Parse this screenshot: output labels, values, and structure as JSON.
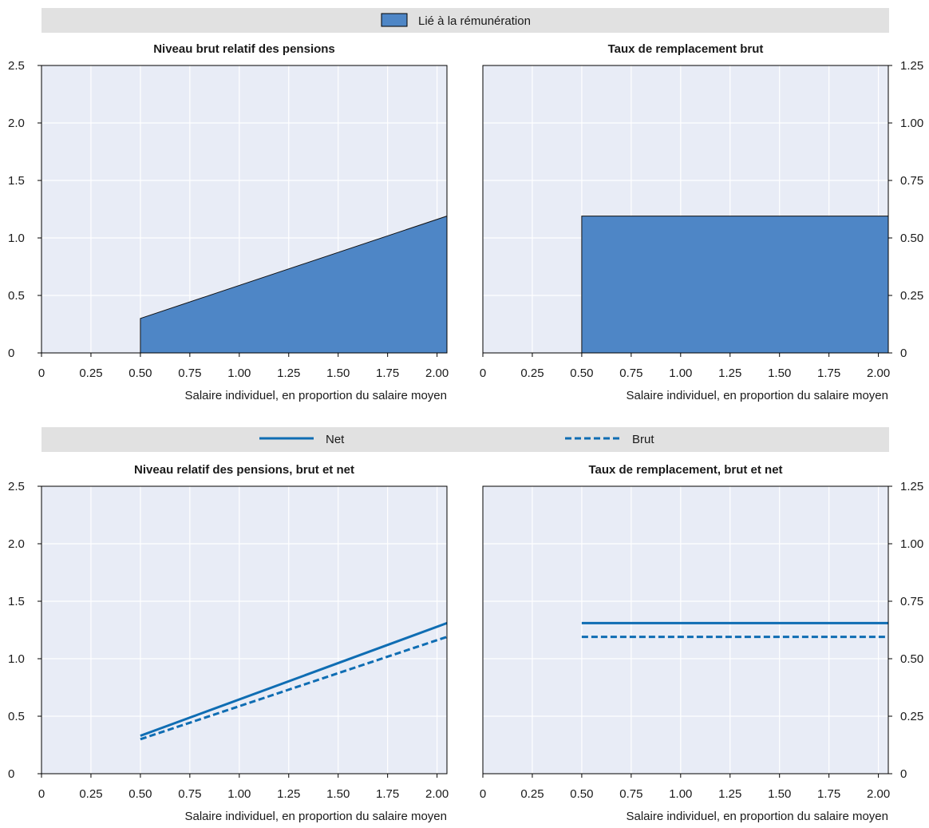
{
  "colors": {
    "area_fill": "#4e86c6",
    "line": "#0f6db3",
    "plot_bg": "#e8ecf6",
    "legend_bg": "#e1e1e1"
  },
  "legend_top": {
    "label": "Lié à la rémunération"
  },
  "legend_bottom": {
    "net_label": "Net",
    "brut_label": "Brut"
  },
  "chart_data": [
    {
      "type": "area",
      "title": "Niveau brut relatif des pensions",
      "xlabel": "Salaire individuel, en proportion du salaire moyen",
      "ylabel": "",
      "xlim": [
        0,
        2.05
      ],
      "ylim": [
        0,
        2.5
      ],
      "x_ticks": [
        "0",
        "0.25",
        "0.50",
        "0.75",
        "1.00",
        "1.25",
        "1.50",
        "1.75",
        "2.00"
      ],
      "y_ticks": [
        "0",
        "0.5",
        "1.0",
        "1.5",
        "2.0",
        "2.5"
      ],
      "y_axis_side": "left",
      "series": [
        {
          "name": "Lié à la rémunération",
          "x": [
            0,
            0.5,
            0.5,
            2.05
          ],
          "y": [
            0,
            0,
            0.3,
            1.19
          ]
        }
      ]
    },
    {
      "type": "area",
      "title": "Taux de remplacement brut",
      "xlabel": "Salaire individuel, en proportion du salaire moyen",
      "ylabel": "",
      "xlim": [
        0,
        2.05
      ],
      "ylim": [
        0,
        1.25
      ],
      "x_ticks": [
        "0",
        "0.25",
        "0.50",
        "0.75",
        "1.00",
        "1.25",
        "1.50",
        "1.75",
        "2.00"
      ],
      "y_ticks": [
        "0",
        "0.25",
        "0.50",
        "0.75",
        "1.00",
        "1.25"
      ],
      "y_axis_side": "right",
      "series": [
        {
          "name": "Lié à la rémunération",
          "x": [
            0,
            0.5,
            0.5,
            2.05
          ],
          "y": [
            0,
            0,
            0.595,
            0.595
          ]
        }
      ]
    },
    {
      "type": "line",
      "title": "Niveau relatif des pensions, brut et net",
      "xlabel": "Salaire individuel, en proportion du salaire moyen",
      "ylabel": "",
      "xlim": [
        0,
        2.05
      ],
      "ylim": [
        0,
        2.5
      ],
      "x_ticks": [
        "0",
        "0.25",
        "0.50",
        "0.75",
        "1.00",
        "1.25",
        "1.50",
        "1.75",
        "2.00"
      ],
      "y_ticks": [
        "0",
        "0.5",
        "1.0",
        "1.5",
        "2.0",
        "2.5"
      ],
      "y_axis_side": "left",
      "series": [
        {
          "name": "Net",
          "x": [
            0.5,
            2.05
          ],
          "y": [
            0.33,
            1.31
          ]
        },
        {
          "name": "Brut",
          "x": [
            0.5,
            2.05
          ],
          "y": [
            0.3,
            1.19
          ]
        }
      ]
    },
    {
      "type": "line",
      "title": "Taux de remplacement, brut et net",
      "xlabel": "Salaire individuel, en proportion du salaire moyen",
      "ylabel": "",
      "xlim": [
        0,
        2.05
      ],
      "ylim": [
        0,
        1.25
      ],
      "x_ticks": [
        "0",
        "0.25",
        "0.50",
        "0.75",
        "1.00",
        "1.25",
        "1.50",
        "1.75",
        "2.00"
      ],
      "y_ticks": [
        "0",
        "0.25",
        "0.50",
        "0.75",
        "1.00",
        "1.25"
      ],
      "y_axis_side": "right",
      "series": [
        {
          "name": "Net",
          "x": [
            0.5,
            2.05
          ],
          "y": [
            0.655,
            0.655
          ]
        },
        {
          "name": "Brut",
          "x": [
            0.5,
            2.05
          ],
          "y": [
            0.595,
            0.595
          ]
        }
      ]
    }
  ]
}
